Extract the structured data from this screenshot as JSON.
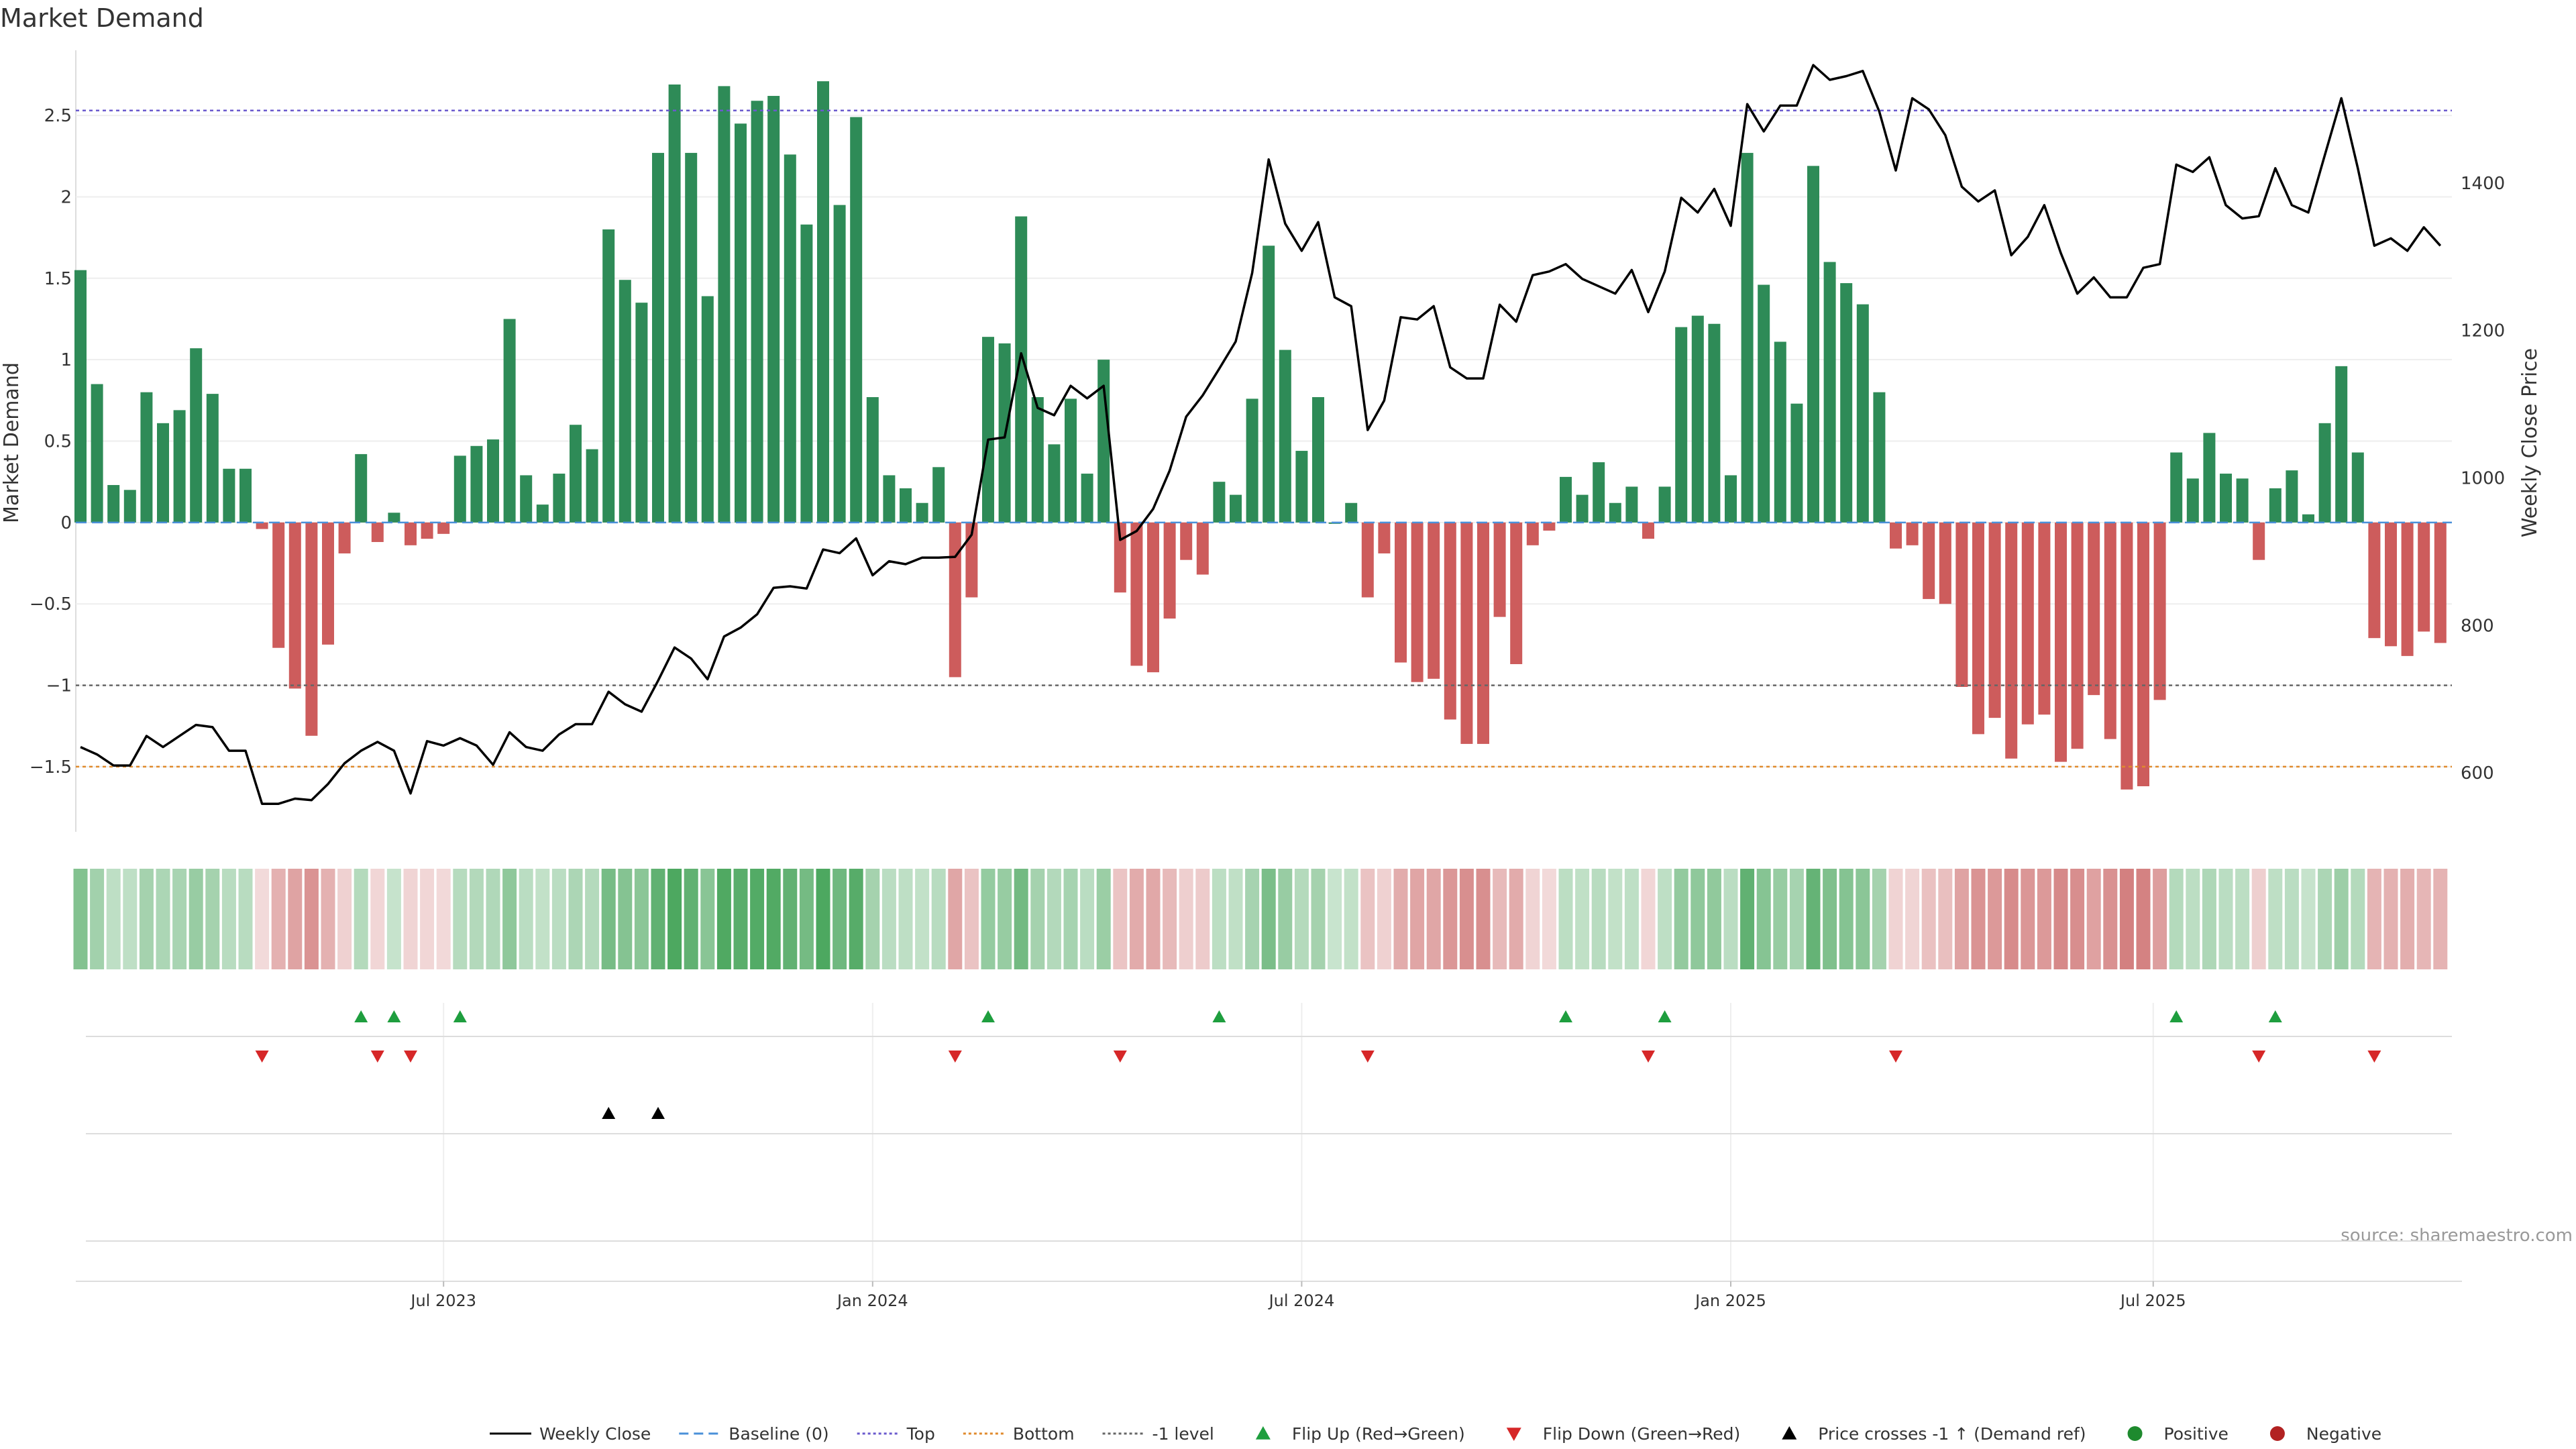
{
  "chart_data": {
    "type": "bar",
    "title": "Market Demand",
    "source": "source: sharemaestro.com",
    "y_left": {
      "label": "Market Demand",
      "range": [
        -1.9,
        2.9
      ],
      "ticks": [
        -1.5,
        -1,
        -0.5,
        0,
        0.5,
        1,
        1.5,
        2,
        2.5
      ],
      "tick_labels": [
        "−1.5",
        "−1",
        "−0.5",
        "0",
        "0.5",
        "1",
        "1.5",
        "2",
        "2.5"
      ]
    },
    "y_right": {
      "label": "Weekly Close Price",
      "range": [
        520,
        1580
      ],
      "ticks": [
        600,
        800,
        1000,
        1200,
        1400
      ],
      "tick_labels": [
        "600",
        "800",
        "1000",
        "1200",
        "1400"
      ]
    },
    "x_ticks": [
      {
        "label": "Jul 2023",
        "week": 22
      },
      {
        "label": "Jan 2024",
        "week": 48
      },
      {
        "label": "Jul 2024",
        "week": 74
      },
      {
        "label": "Jan 2025",
        "week": 100
      },
      {
        "label": "Jul 2025",
        "week": 125.6
      }
    ],
    "reference_lines": [
      {
        "name": "Top",
        "value": 2.53,
        "color": "#6a5acd"
      },
      {
        "name": "-1 level",
        "value": -1.0,
        "color": "#666666"
      },
      {
        "name": "Bottom",
        "value": -1.5,
        "color": "#e08a2c"
      },
      {
        "name": "Baseline (0)",
        "value": 0,
        "color": "#4a90d9"
      }
    ],
    "series": [
      {
        "name": "Market Demand",
        "values": [
          1.55,
          0.85,
          0.23,
          0.2,
          0.8,
          0.61,
          0.69,
          1.07,
          0.79,
          0.33,
          0.33,
          -0.04,
          -0.77,
          -1.02,
          -1.31,
          -0.75,
          -0.19,
          0.42,
          -0.12,
          0.06,
          -0.14,
          -0.1,
          -0.07,
          0.41,
          0.47,
          0.51,
          1.25,
          0.29,
          0.11,
          0.3,
          0.6,
          0.45,
          1.8,
          1.49,
          1.35,
          2.27,
          2.69,
          2.27,
          1.39,
          2.68,
          2.45,
          2.59,
          2.62,
          2.26,
          1.83,
          2.71,
          1.95,
          2.49,
          0.77,
          0.29,
          0.21,
          0.12,
          0.34,
          -0.95,
          -0.46,
          1.14,
          1.1,
          1.88,
          0.77,
          0.48,
          0.76,
          0.3,
          1.0,
          -0.43,
          -0.88,
          -0.92,
          -0.59,
          -0.23,
          -0.32,
          0.25,
          0.17,
          0.76,
          1.7,
          1.06,
          0.44,
          0.77,
          0.0,
          0.12,
          -0.46,
          -0.19,
          -0.86,
          -0.98,
          -0.96,
          -1.21,
          -1.36,
          -1.36,
          -0.58,
          -0.87,
          -0.14,
          -0.05,
          0.28,
          0.17,
          0.37,
          0.12,
          0.22,
          -0.1,
          0.22,
          1.2,
          1.27,
          1.22,
          0.29,
          2.27,
          1.46,
          1.11,
          0.73,
          2.19,
          1.6,
          1.47,
          1.34,
          0.8,
          -0.16,
          -0.14,
          -0.47,
          -0.5,
          -1.01,
          -1.3,
          -1.2,
          -1.45,
          -1.24,
          -1.18,
          -1.47,
          -1.39,
          -1.06,
          -1.33,
          -1.64,
          -1.62,
          -1.09,
          0.43,
          0.27,
          0.55,
          0.3,
          0.27,
          -0.23,
          0.21,
          0.32,
          0.05,
          0.61,
          0.96,
          0.43,
          -0.71,
          -0.76,
          -0.82,
          -0.67,
          -0.74
        ]
      },
      {
        "name": "Weekly Close",
        "values": [
          635,
          625,
          610,
          610,
          650,
          635,
          650,
          665,
          662,
          630,
          630,
          558,
          558,
          565,
          563,
          585,
          613,
          630,
          642,
          630,
          572,
          643,
          637,
          647,
          637,
          611,
          655,
          635,
          630,
          652,
          666,
          666,
          710,
          693,
          683,
          725,
          770,
          755,
          727,
          785,
          797,
          815,
          851,
          853,
          850,
          903,
          898,
          918,
          868,
          887,
          883,
          892,
          892,
          893,
          923,
          1052,
          1055,
          1169,
          1095,
          1085,
          1125,
          1108,
          1125,
          916,
          928,
          958,
          1010,
          1083,
          1112,
          1148,
          1185,
          1278,
          1432,
          1345,
          1308,
          1347,
          1245,
          1233,
          1065,
          1105,
          1218,
          1215,
          1233,
          1150,
          1135,
          1135,
          1235,
          1212,
          1275,
          1280,
          1290,
          1270,
          1260,
          1250,
          1282,
          1225,
          1280,
          1380,
          1360,
          1392,
          1342,
          1507,
          1470,
          1505,
          1505,
          1560,
          1540,
          1545,
          1552,
          1497,
          1417,
          1515,
          1500,
          1465,
          1395,
          1375,
          1390,
          1302,
          1327,
          1370,
          1305,
          1250,
          1272,
          1245,
          1245,
          1285,
          1290,
          1425,
          1415,
          1435,
          1370,
          1352,
          1355,
          1420,
          1370,
          1360,
          1438,
          1515,
          1420,
          1315,
          1325,
          1308,
          1340,
          1315
        ]
      }
    ],
    "heatmap_strip": {
      "name": "Demand colour strip",
      "source": "Market Demand",
      "positive_color": "#3a9e4f",
      "negative_color": "#c86060"
    },
    "events": {
      "flip_up_weeks": [
        17,
        19,
        23,
        55,
        69,
        90,
        96,
        127,
        133
      ],
      "flip_down_weeks": [
        11,
        18,
        20,
        53,
        63,
        78,
        95,
        110,
        132,
        139
      ],
      "price_cross_weeks": [
        32,
        35
      ]
    },
    "legend": [
      {
        "label": "Weekly Close",
        "symbol": "solid-line",
        "color": "#000000"
      },
      {
        "label": "Baseline (0)",
        "symbol": "dashed-line",
        "color": "#4a90d9"
      },
      {
        "label": "Top",
        "symbol": "dotted-line",
        "color": "#6a5acd"
      },
      {
        "label": "Bottom",
        "symbol": "dotted-line",
        "color": "#e08a2c"
      },
      {
        "label": "-1 level",
        "symbol": "dotted-line",
        "color": "#666666"
      },
      {
        "label": "Flip Up (Red→Green)",
        "symbol": "triangle-up",
        "color": "#1e9e3e"
      },
      {
        "label": "Flip Down (Green→Red)",
        "symbol": "triangle-down",
        "color": "#d62728"
      },
      {
        "label": "Price crosses -1 ↑ (Demand ref)",
        "symbol": "triangle-up",
        "color": "#000000"
      },
      {
        "label": "Positive",
        "symbol": "circle",
        "color": "#1e8a2e"
      },
      {
        "label": "Negative",
        "symbol": "circle",
        "color": "#b22222"
      }
    ],
    "colors": {
      "positive_bar": "#2e8b57",
      "negative_bar": "#cd5c5c",
      "close_line": "#000000"
    }
  }
}
